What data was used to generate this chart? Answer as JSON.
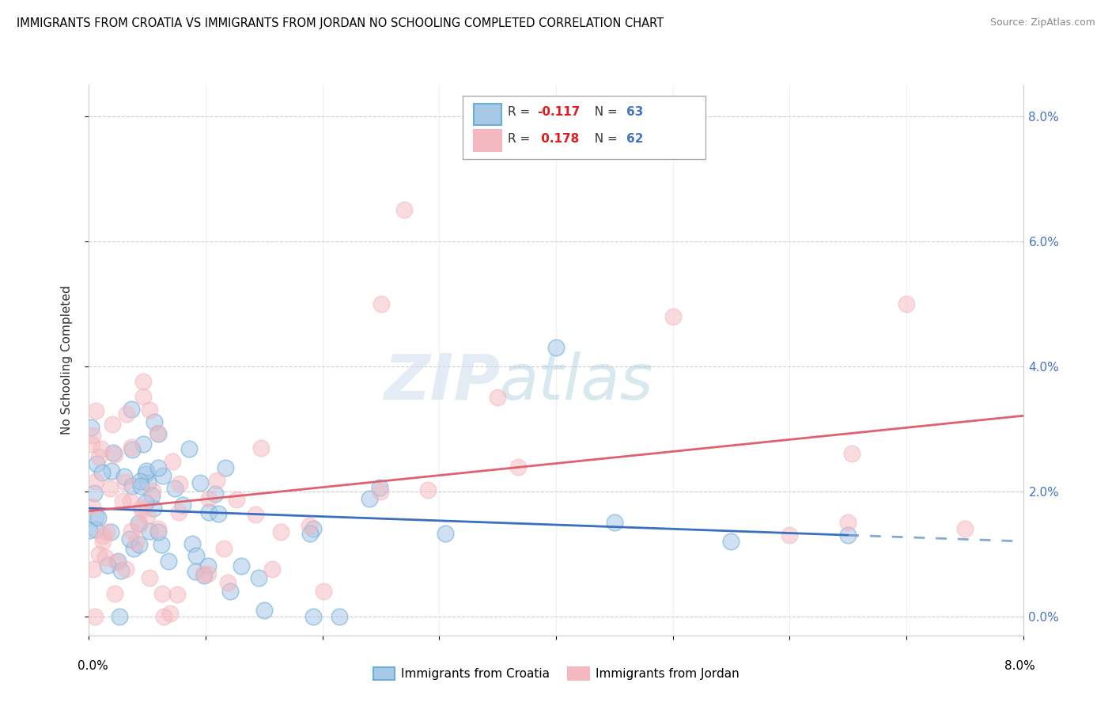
{
  "title": "IMMIGRANTS FROM CROATIA VS IMMIGRANTS FROM JORDAN NO SCHOOLING COMPLETED CORRELATION CHART",
  "source": "Source: ZipAtlas.com",
  "ylabel": "No Schooling Completed",
  "legend_croatia": "Immigrants from Croatia",
  "legend_jordan": "Immigrants from Jordan",
  "r_croatia": "-0.117",
  "n_croatia": "63",
  "r_jordan": "0.178",
  "n_jordan": "62",
  "color_croatia_fill": "#a8c8e8",
  "color_croatia_edge": "#6baed6",
  "color_jordan_fill": "#f4b8c0",
  "color_jordan_edge": "#f4b8c0",
  "color_croatia_line": "#3a6fbf",
  "color_jordan_line": "#e06070",
  "xlim": [
    0.0,
    0.08
  ],
  "ylim": [
    -0.003,
    0.085
  ],
  "right_ytick_vals": [
    0.0,
    0.02,
    0.04,
    0.06,
    0.08
  ],
  "right_ytick_labels": [
    "0.0%",
    "2.0%",
    "4.0%",
    "6.0%",
    "8.0%"
  ]
}
